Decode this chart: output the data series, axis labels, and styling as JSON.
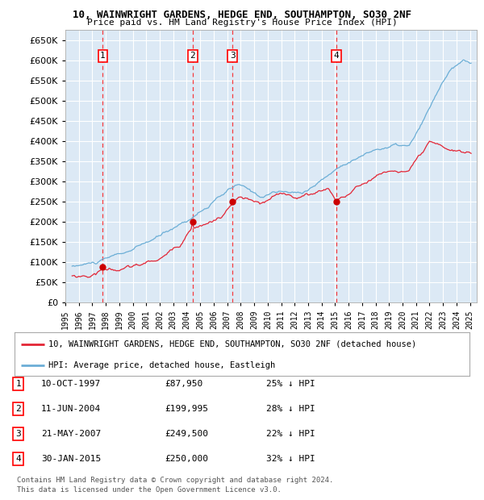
{
  "title1": "10, WAINWRIGHT GARDENS, HEDGE END, SOUTHAMPTON, SO30 2NF",
  "title2": "Price paid vs. HM Land Registry's House Price Index (HPI)",
  "plot_bg_color": "#dce9f5",
  "grid_color": "#ffffff",
  "hpi_color": "#6baed6",
  "price_color": "#e32636",
  "marker_color": "#cc0000",
  "ylabel_values": [
    0,
    50000,
    100000,
    150000,
    200000,
    250000,
    300000,
    350000,
    400000,
    450000,
    500000,
    550000,
    600000,
    650000
  ],
  "ylim": [
    0,
    675000
  ],
  "xlim_start": 1995.3,
  "xlim_end": 2025.5,
  "xtick_years": [
    1995,
    1996,
    1997,
    1998,
    1999,
    2000,
    2001,
    2002,
    2003,
    2004,
    2005,
    2006,
    2007,
    2008,
    2009,
    2010,
    2011,
    2012,
    2013,
    2014,
    2015,
    2016,
    2017,
    2018,
    2019,
    2020,
    2021,
    2022,
    2023,
    2024,
    2025
  ],
  "sale_dates": [
    1997.78,
    2004.44,
    2007.39,
    2015.08
  ],
  "sale_prices": [
    87950,
    199995,
    249500,
    250000
  ],
  "sale_labels": [
    "1",
    "2",
    "3",
    "4"
  ],
  "legend_line1": "10, WAINWRIGHT GARDENS, HEDGE END, SOUTHAMPTON, SO30 2NF (detached house)",
  "legend_line2": "HPI: Average price, detached house, Eastleigh",
  "table_rows": [
    {
      "num": "1",
      "date": "10-OCT-1997",
      "price": "£87,950",
      "hpi": "25% ↓ HPI"
    },
    {
      "num": "2",
      "date": "11-JUN-2004",
      "price": "£199,995",
      "hpi": "28% ↓ HPI"
    },
    {
      "num": "3",
      "date": "21-MAY-2007",
      "price": "£249,500",
      "hpi": "22% ↓ HPI"
    },
    {
      "num": "4",
      "date": "30-JAN-2015",
      "price": "£250,000",
      "hpi": "32% ↓ HPI"
    }
  ],
  "footnote1": "Contains HM Land Registry data © Crown copyright and database right 2024.",
  "footnote2": "This data is licensed under the Open Government Licence v3.0."
}
